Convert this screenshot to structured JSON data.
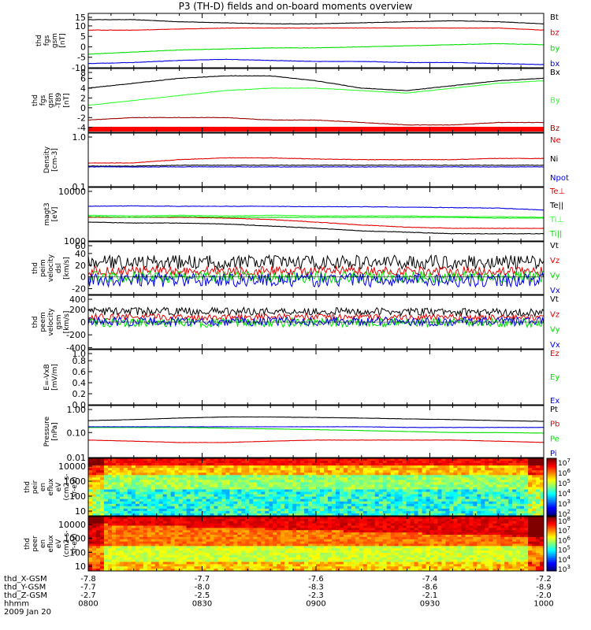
{
  "title": "P3 (TH-D) fields and on-board moments overview",
  "colors": {
    "black": "#000000",
    "red": "#e00000",
    "green": "#00e000",
    "blue": "#0000e0",
    "darkred": "#9b0000",
    "brightgreen": "#33ff33"
  },
  "chart_data": [
    {
      "type": "line",
      "ylabel": [
        "thd",
        "fgs",
        "gsm",
        "[nT]"
      ],
      "yticks": [
        "15",
        "10",
        "5",
        "0",
        "-5",
        "-10"
      ],
      "ylim": [
        -10,
        16
      ],
      "series": [
        {
          "name": "Bt",
          "color": "#000000",
          "x": [
            0,
            0.1,
            0.2,
            0.3,
            0.4,
            0.5,
            0.6,
            0.7,
            0.8,
            0.9,
            1
          ],
          "y": [
            13,
            13,
            12,
            11.5,
            11,
            11,
            11.5,
            12,
            12.5,
            12,
            11
          ]
        },
        {
          "name": "bz",
          "color": "#e00000",
          "x": [
            0,
            0.1,
            0.2,
            0.3,
            0.4,
            0.5,
            0.6,
            0.7,
            0.8,
            0.9,
            1
          ],
          "y": [
            8,
            8,
            8.5,
            9,
            9,
            9,
            9,
            9,
            9,
            9,
            8
          ]
        },
        {
          "name": "by",
          "color": "#00e000",
          "x": [
            0,
            0.1,
            0.2,
            0.3,
            0.4,
            0.5,
            0.6,
            0.7,
            0.8,
            0.9,
            1
          ],
          "y": [
            -3.5,
            -2.5,
            -1.5,
            -1,
            -0.5,
            -0.5,
            0,
            0.5,
            1,
            1.5,
            1
          ]
        },
        {
          "name": "bx",
          "color": "#0000e0",
          "x": [
            0,
            0.1,
            0.2,
            0.3,
            0.4,
            0.5,
            0.6,
            0.7,
            0.8,
            0.9,
            1
          ],
          "y": [
            -8,
            -7.5,
            -6.5,
            -6,
            -6.5,
            -7,
            -7,
            -7.5,
            -7.5,
            -8,
            -8.5
          ]
        }
      ]
    },
    {
      "type": "line",
      "ylabel": [
        "thd",
        "fgs",
        "gsm",
        "-T89",
        "[nT]"
      ],
      "yticks": [
        "8",
        "6",
        "4",
        "2",
        "0",
        "-2",
        "-4"
      ],
      "ylim": [
        -5,
        8
      ],
      "series": [
        {
          "name": "Bx",
          "color": "#000000",
          "x": [
            0,
            0.1,
            0.2,
            0.3,
            0.4,
            0.5,
            0.6,
            0.7,
            0.8,
            0.9,
            1
          ],
          "y": [
            4,
            5,
            6,
            6.5,
            6.5,
            5.5,
            4,
            3.5,
            4.5,
            5.5,
            6
          ]
        },
        {
          "name": "By",
          "color": "#33ff33",
          "x": [
            0,
            0.1,
            0.2,
            0.3,
            0.4,
            0.5,
            0.6,
            0.7,
            0.8,
            0.9,
            1
          ],
          "y": [
            0.5,
            1.5,
            2.5,
            3.5,
            4,
            4,
            3.5,
            3,
            4,
            5,
            5.5
          ]
        },
        {
          "name": "Bz",
          "color": "#9b0000",
          "x": [
            0,
            0.1,
            0.2,
            0.3,
            0.4,
            0.5,
            0.6,
            0.7,
            0.8,
            0.9,
            1
          ],
          "y": [
            -2.5,
            -2,
            -2,
            -2,
            -2.5,
            -2.5,
            -3,
            -3.5,
            -3.5,
            -3,
            -3
          ]
        }
      ]
    },
    {
      "type": "line",
      "ylabel": [
        "Density",
        "[cm-3]"
      ],
      "yticks": [
        "1.0",
        "0.1"
      ],
      "yscale": "log",
      "ylim": [
        0.1,
        1.2
      ],
      "series": [
        {
          "name": "Ne",
          "color": "#e00000",
          "x": [
            0,
            0.1,
            0.2,
            0.3,
            0.4,
            0.5,
            0.6,
            0.7,
            0.8,
            0.9,
            1
          ],
          "y": [
            0.3,
            0.3,
            0.35,
            0.38,
            0.38,
            0.36,
            0.35,
            0.35,
            0.35,
            0.37,
            0.37
          ]
        },
        {
          "name": "Ni",
          "color": "#000000",
          "x": [
            0,
            0.1,
            0.2,
            0.3,
            0.4,
            0.5,
            0.6,
            0.7,
            0.8,
            0.9,
            1
          ],
          "y": [
            0.26,
            0.26,
            0.27,
            0.27,
            0.27,
            0.27,
            0.27,
            0.27,
            0.27,
            0.27,
            0.27
          ]
        },
        {
          "name": "Npot",
          "color": "#0000e0",
          "x": [
            0,
            0.1,
            0.2,
            0.3,
            0.4,
            0.5,
            0.6,
            0.7,
            0.8,
            0.9,
            1
          ],
          "y": [
            0.25,
            0.25,
            0.25,
            0.25,
            0.25,
            0.25,
            0.25,
            0.25,
            0.25,
            0.25,
            0.25
          ]
        }
      ]
    },
    {
      "type": "line",
      "ylabel": [
        "magt3",
        "[eV]"
      ],
      "yticks": [
        "10000",
        "1000"
      ],
      "yscale": "log",
      "ylim": [
        1000,
        12000
      ],
      "series": [
        {
          "name": "Te⊥",
          "color": "#e00000",
          "x": [
            0,
            0.1,
            0.2,
            0.3,
            0.4,
            0.5,
            0.6,
            0.7,
            0.8,
            0.9,
            1
          ],
          "y": [
            3000,
            3000,
            3000,
            2900,
            2700,
            2400,
            2100,
            1900,
            1800,
            1800,
            1800
          ]
        },
        {
          "name": "Te||",
          "color": "#000000",
          "x": [
            0,
            0.1,
            0.2,
            0.3,
            0.4,
            0.5,
            0.6,
            0.7,
            0.8,
            0.9,
            1
          ],
          "y": [
            2400,
            2300,
            2300,
            2200,
            2000,
            1800,
            1600,
            1500,
            1400,
            1400,
            1400
          ]
        },
        {
          "name": "Ti⊥",
          "color": "#33ff33",
          "x": [
            0,
            0.1,
            0.2,
            0.3,
            0.4,
            0.5,
            0.6,
            0.7,
            0.8,
            0.9,
            1
          ],
          "y": [
            3300,
            3200,
            3300,
            3200,
            3300,
            3200,
            3200,
            3200,
            3100,
            3100,
            3000
          ]
        },
        {
          "name": "Ti||",
          "color": "#00e000",
          "x": [
            0,
            0.1,
            0.2,
            0.3,
            0.4,
            0.5,
            0.6,
            0.7,
            0.8,
            0.9,
            1
          ],
          "y": [
            3100,
            3000,
            3100,
            3000,
            3000,
            3000,
            3000,
            3000,
            3000,
            2900,
            2900
          ]
        },
        {
          "name": "Tpot",
          "color": "#0000e0",
          "x": [
            0,
            0.1,
            0.2,
            0.3,
            0.4,
            0.5,
            0.6,
            0.7,
            0.8,
            0.9,
            1
          ],
          "y": [
            5000,
            5100,
            5000,
            5000,
            5000,
            4900,
            4900,
            4800,
            4700,
            4600,
            4200
          ]
        }
      ],
      "legend": [
        "Te⊥",
        "Te||",
        "Ti⊥",
        "Ti||"
      ]
    },
    {
      "type": "line",
      "ylabel": [
        "thd",
        "peim",
        "velocity",
        "dsl",
        "[km/s]"
      ],
      "yticks": [
        "60",
        "40",
        "20",
        "0",
        "-20"
      ],
      "ylim": [
        -30,
        60
      ],
      "noisy": true,
      "series": [
        {
          "name": "Vt",
          "color": "#000000",
          "x": [
            0,
            0.5,
            1
          ],
          "y": [
            25,
            25,
            25
          ],
          "amp": 12
        },
        {
          "name": "Vz",
          "color": "#e00000",
          "x": [
            0,
            0.5,
            1
          ],
          "y": [
            10,
            10,
            10
          ],
          "amp": 8
        },
        {
          "name": "Vy",
          "color": "#00e000",
          "x": [
            0,
            0.5,
            1
          ],
          "y": [
            0,
            0,
            0
          ],
          "amp": 10
        },
        {
          "name": "Vx",
          "color": "#0000e0",
          "x": [
            0,
            0.5,
            1
          ],
          "y": [
            -5,
            -5,
            -5
          ],
          "amp": 12
        }
      ]
    },
    {
      "type": "line",
      "ylabel": [
        "thd",
        "peem",
        "velocity",
        "gsm",
        "[km/s]"
      ],
      "yticks": [
        "400",
        "200",
        "0",
        "-200",
        "-400"
      ],
      "ylim": [
        -420,
        420
      ],
      "noisy": true,
      "series": [
        {
          "name": "Vt",
          "color": "#000000",
          "x": [
            0,
            0.5,
            1
          ],
          "y": [
            170,
            170,
            150
          ],
          "amp": 60
        },
        {
          "name": "Vz",
          "color": "#e00000",
          "x": [
            0,
            0.5,
            1
          ],
          "y": [
            80,
            80,
            70
          ],
          "amp": 50
        },
        {
          "name": "Vy",
          "color": "#00e000",
          "x": [
            0,
            0.5,
            1
          ],
          "y": [
            -10,
            -10,
            -10
          ],
          "amp": 70
        },
        {
          "name": "Vx",
          "color": "#0000e0",
          "x": [
            0,
            0.5,
            1
          ],
          "y": [
            10,
            10,
            10
          ],
          "amp": 70
        }
      ]
    },
    {
      "type": "line",
      "ylabel": [
        "E=-VxB",
        "[mV/m]"
      ],
      "yticks": [
        "1.0",
        "0.8",
        "0.6",
        "0.4",
        "0.2",
        "0.0"
      ],
      "ylim": [
        0,
        1
      ],
      "series": [
        {
          "name": "Ez",
          "color": "#e00000",
          "x": [],
          "y": []
        },
        {
          "name": "Ey",
          "color": "#00e000",
          "x": [],
          "y": []
        },
        {
          "name": "Ex",
          "color": "#0000e0",
          "x": [],
          "y": []
        }
      ]
    },
    {
      "type": "line",
      "ylabel": [
        "Pressure",
        "[nPa]"
      ],
      "yticks": [
        "1.00",
        "0.10",
        "0.01"
      ],
      "yscale": "log",
      "ylim": [
        0.01,
        1.2
      ],
      "series": [
        {
          "name": "Pt",
          "color": "#000000",
          "x": [
            0,
            0.1,
            0.2,
            0.3,
            0.4,
            0.5,
            0.6,
            0.7,
            0.8,
            0.9,
            1
          ],
          "y": [
            0.3,
            0.33,
            0.38,
            0.42,
            0.42,
            0.4,
            0.38,
            0.35,
            0.33,
            0.3,
            0.28
          ]
        },
        {
          "name": "Pb",
          "color": "#e00000",
          "x": [
            0,
            0.1,
            0.2,
            0.3,
            0.4,
            0.5,
            0.6,
            0.7,
            0.8,
            0.9,
            1
          ],
          "y": [
            0.05,
            0.045,
            0.04,
            0.04,
            0.045,
            0.05,
            0.05,
            0.05,
            0.05,
            0.045,
            0.04
          ]
        },
        {
          "name": "Pe",
          "color": "#00e000",
          "x": [
            0,
            0.1,
            0.2,
            0.3,
            0.4,
            0.5,
            0.6,
            0.7,
            0.8,
            0.9,
            1
          ],
          "y": [
            0.16,
            0.16,
            0.16,
            0.15,
            0.14,
            0.13,
            0.12,
            0.11,
            0.1,
            0.1,
            0.095
          ]
        },
        {
          "name": "Pi",
          "color": "#0000e0",
          "x": [
            0,
            0.1,
            0.2,
            0.3,
            0.4,
            0.5,
            0.6,
            0.7,
            0.8,
            0.9,
            1
          ],
          "y": [
            0.17,
            0.17,
            0.17,
            0.17,
            0.17,
            0.17,
            0.17,
            0.16,
            0.16,
            0.16,
            0.16
          ]
        }
      ]
    },
    {
      "type": "heatmap",
      "ylabel": [
        "thd",
        "peir",
        "en",
        "eflux",
        "eV",
        "(cm2-s-",
        "sr-eV)"
      ],
      "yticks": [
        "10000",
        "1000",
        "100",
        "10"
      ],
      "cbar_ticks": [
        "10^7",
        "10^6",
        "10^5",
        "10^4",
        "10^3",
        "10^2"
      ],
      "variant": "ion"
    },
    {
      "type": "heatmap",
      "ylabel": [
        "thd",
        "peer",
        "en",
        "eflux",
        "eV",
        "(cm2-s-",
        "sr-eV)"
      ],
      "yticks": [
        "10000",
        "1000",
        "100",
        "10"
      ],
      "cbar_ticks": [
        "10^8",
        "10^7",
        "10^6",
        "10^5",
        "10^4",
        "10^3"
      ],
      "variant": "electron"
    }
  ],
  "footer": {
    "rows": [
      {
        "label": "thd_X-GSM",
        "values": [
          "-7.8",
          "-7.7",
          "-7.6",
          "-7.4",
          "-7.2"
        ]
      },
      {
        "label": "thd_Y-GSM",
        "values": [
          "-7.7",
          "-8.0",
          "-8.3",
          "-8.6",
          "-8.9"
        ]
      },
      {
        "label": "thd_Z-GSM",
        "values": [
          "-2.7",
          "-2.5",
          "-2.3",
          "-2.1",
          "-2.0"
        ]
      },
      {
        "label": "hhmm",
        "values": [
          "0800",
          "0830",
          "0900",
          "0930",
          "1000"
        ]
      }
    ],
    "date": "2009 Jan 20"
  }
}
